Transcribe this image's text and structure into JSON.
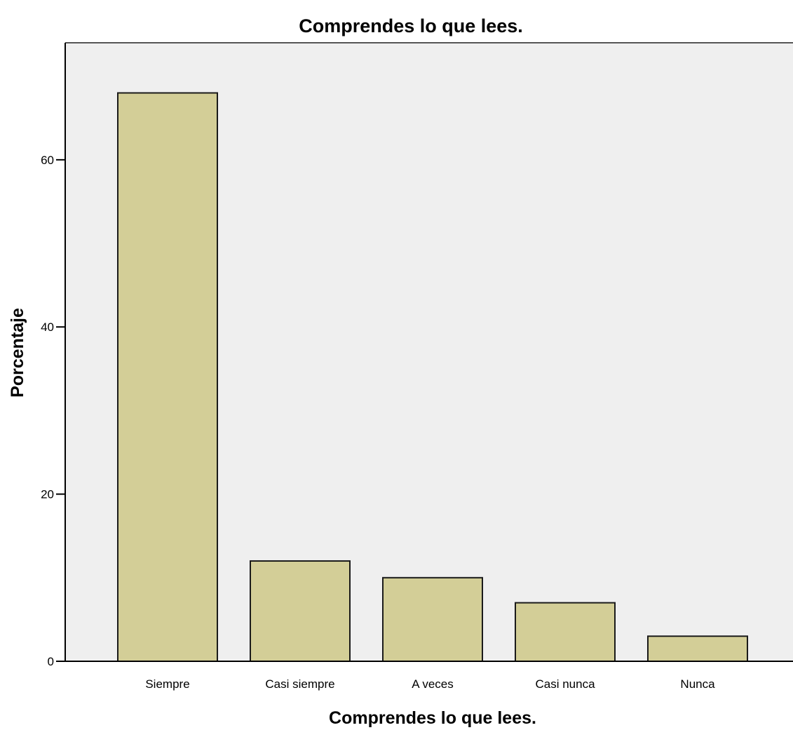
{
  "chart_data": {
    "type": "bar",
    "title": "Comprendes lo que lees.",
    "xlabel": "Comprendes lo que lees.",
    "ylabel": "Porcentaje",
    "categories": [
      "Siempre",
      "Casi siempre",
      "A veces",
      "Casi nunca",
      "Nunca"
    ],
    "values": [
      68,
      12,
      10,
      7,
      3
    ],
    "ylim": [
      0,
      74
    ],
    "yticks": [
      0,
      20,
      40,
      60
    ],
    "ytick_labels": [
      "0",
      "20",
      "40",
      "60"
    ],
    "grid": false,
    "legend": "none",
    "colors": {
      "bar_fill": "#d3ce97",
      "bar_stroke": "#1a1a1a",
      "plot_background": "#efefef",
      "page_background": "#ffffff",
      "axis": "#000000"
    }
  }
}
